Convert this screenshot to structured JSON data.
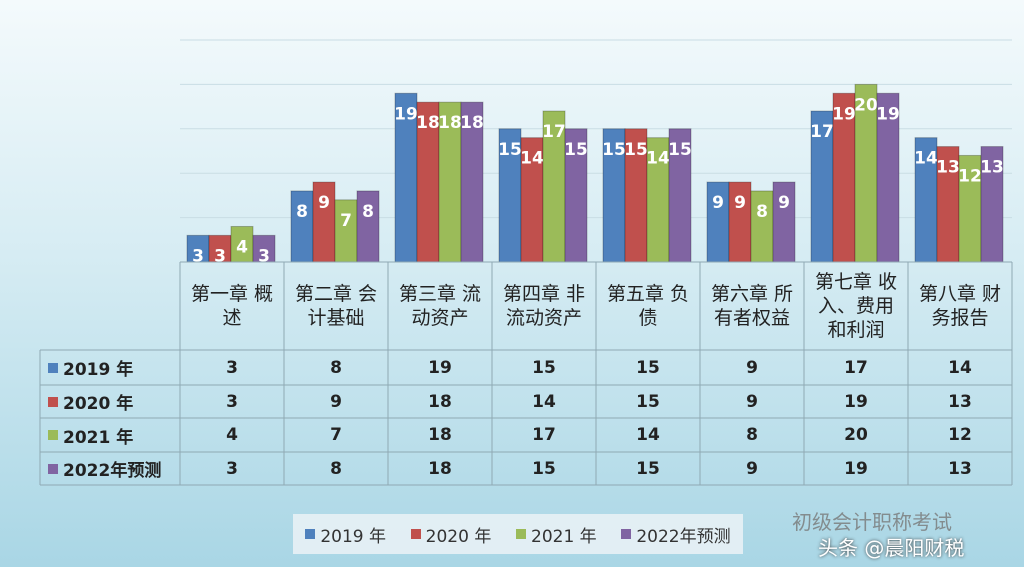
{
  "chart_data": {
    "type": "bar",
    "categories": [
      "第一章 概述",
      "第二章 会计基础",
      "第三章 流动资产",
      "第四章 非流动资产",
      "第五章 负债",
      "第六章 所有者权益",
      "第七章 收入、费用和利润",
      "第八章 财务报告"
    ],
    "series": [
      {
        "name": "2019 年",
        "color": "#4f81bd",
        "values": [
          3,
          8,
          19,
          15,
          15,
          9,
          17,
          14
        ]
      },
      {
        "name": "2020 年",
        "color": "#c0504d",
        "values": [
          3,
          9,
          18,
          14,
          15,
          9,
          19,
          13
        ]
      },
      {
        "name": "2021 年",
        "color": "#9bbb59",
        "values": [
          4,
          7,
          18,
          17,
          14,
          8,
          20,
          12
        ]
      },
      {
        "name": "2022年预测",
        "color": "#8064a2",
        "values": [
          3,
          8,
          18,
          15,
          15,
          9,
          19,
          13
        ]
      }
    ],
    "ylim": [
      0,
      25
    ],
    "yticks": [
      0,
      5,
      10,
      15,
      20,
      25
    ],
    "grid": true
  },
  "watermark": {
    "account": "初级会计职称考试",
    "source": "头条 @晨阳财税"
  }
}
